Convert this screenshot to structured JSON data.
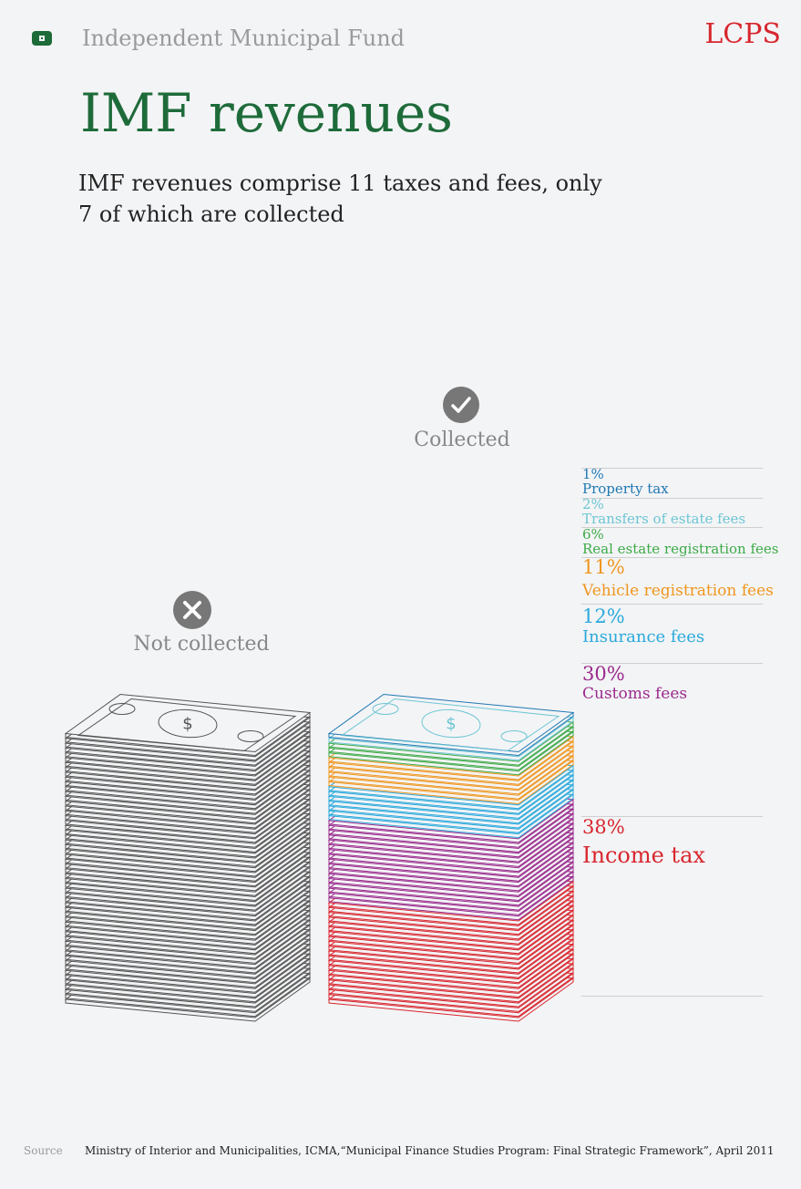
{
  "header": {
    "section_name": "Independent Municipal Fund",
    "brand": "LCPS",
    "icon": "treasure-chest-icon",
    "icon_color": "#1e6b3a",
    "brand_color": "#d8262e"
  },
  "title": "IMF revenues",
  "subtitle": "IMF revenues comprise 11 taxes and fees, only 7 of which are collected",
  "groups": {
    "not_collected": {
      "label": "Not collected",
      "icon": "x-circle-icon"
    },
    "collected": {
      "label": "Collected",
      "icon": "check-circle-icon"
    }
  },
  "chart_data": {
    "type": "bar",
    "stacked": true,
    "unit": "%",
    "categories": [
      "Not collected",
      "Collected"
    ],
    "series": [
      {
        "name": "Property tax",
        "label": "1%",
        "value": 1,
        "color": "#1f78b4"
      },
      {
        "name": "Transfers of estate fees",
        "label": "2%",
        "value": 2,
        "color": "#6cc6d4"
      },
      {
        "name": "Real estate registration fees",
        "label": "6%",
        "value": 6,
        "color": "#3caa47"
      },
      {
        "name": "Vehicle registration fees",
        "label": "11%",
        "value": 11,
        "color": "#f0961e"
      },
      {
        "name": "Insurance fees",
        "label": "12%",
        "value": 12,
        "color": "#2aa9dc"
      },
      {
        "name": "Customs fees",
        "label": "30%",
        "value": 30,
        "color": "#9a2a8c"
      },
      {
        "name": "Income tax",
        "label": "38%",
        "value": 38,
        "color": "#d8262e"
      }
    ],
    "not_collected_color": "#555555"
  },
  "source": {
    "label": "Source",
    "text": "Ministry of Interior and Municipalities, ICMA,“Municipal Finance Studies Program: Final Strategic Framework”, April 2011"
  }
}
